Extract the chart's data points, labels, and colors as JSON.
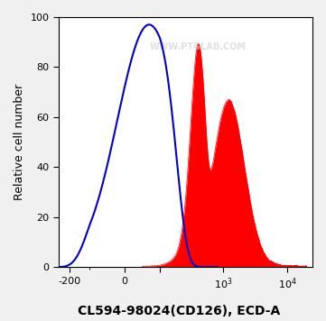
{
  "title": "CL594-98024(CD126), ECD-A",
  "ylabel": "Relative cell number",
  "xlabel": "CL594-98024(CD126), ECD-A",
  "watermark": "WWW.PTGLAB.COM",
  "ylim": [
    0,
    100
  ],
  "xlim_log_min": -300,
  "xlim_log_max": 30000,
  "background_color": "#f0f0f0",
  "plot_bg_color": "#ffffff",
  "blue_color": "#0000cc",
  "red_color": "#ff0000",
  "yticks": [
    0,
    20,
    40,
    60,
    80,
    100
  ],
  "xtick_labels": [
    "0",
    "10^3",
    "10^4"
  ],
  "title_fontsize": 10,
  "ylabel_fontsize": 9,
  "xlabel_fontsize": 10
}
